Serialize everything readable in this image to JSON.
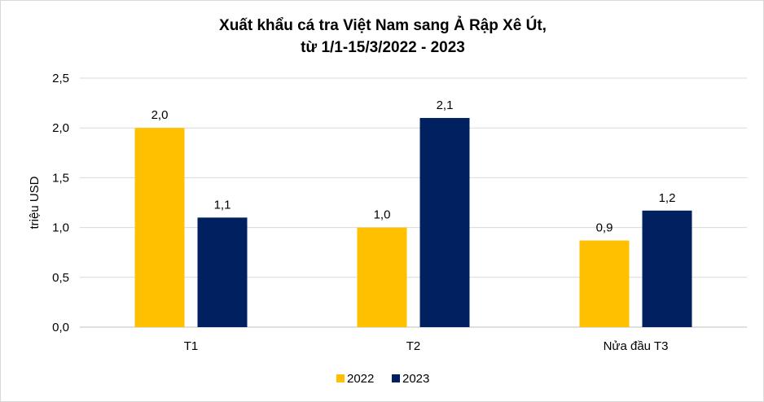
{
  "chart_data": {
    "type": "bar",
    "title_line1": "Xuất khẩu cá tra Việt Nam sang Ả Rập Xê Út,",
    "title_line2": "từ 1/1-15/3/2022 - 2023",
    "xlabel": "",
    "ylabel": "triệu USD",
    "ylim": [
      0,
      2.5
    ],
    "yticks": [
      "0,0",
      "0,5",
      "1,0",
      "1,5",
      "2,0",
      "2,5"
    ],
    "ytick_values": [
      0,
      0.5,
      1.0,
      1.5,
      2.0,
      2.5
    ],
    "grid": true,
    "legend_position": "bottom",
    "categories": [
      "T1",
      "T2",
      "Nửa đầu T3"
    ],
    "series": [
      {
        "name": "2022",
        "color": "#FFC000",
        "values": [
          2.0,
          1.0,
          0.87
        ],
        "labels": [
          "2,0",
          "1,0",
          "0,9"
        ]
      },
      {
        "name": "2023",
        "color": "#002060",
        "values": [
          1.1,
          2.1,
          1.17
        ],
        "labels": [
          "1,1",
          "2,1",
          "1,2"
        ]
      }
    ]
  }
}
